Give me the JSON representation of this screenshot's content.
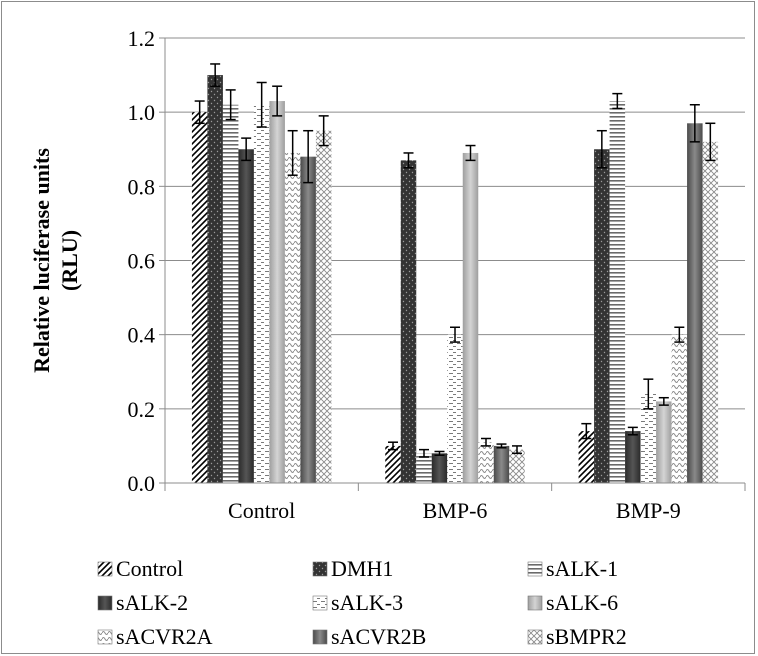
{
  "chart_data": {
    "type": "bar",
    "title": "",
    "xlabel": "",
    "ylabel_lines": [
      "Relative luciferase units",
      "(RLU)"
    ],
    "ylim": [
      0,
      1.2
    ],
    "ytick_step": 0.2,
    "ytick_labels": [
      "0.0",
      "0.2",
      "0.4",
      "0.6",
      "0.8",
      "1.0",
      "1.2"
    ],
    "grid": true,
    "legend_position": "bottom",
    "categories": [
      "Control",
      "BMP-6",
      "BMP-9"
    ],
    "series": [
      {
        "name": "Control",
        "pattern": "diag-dense",
        "values": [
          1.0,
          0.1,
          0.14
        ],
        "errors": [
          0.03,
          0.01,
          0.02
        ]
      },
      {
        "name": "DMH1",
        "pattern": "dark-dots",
        "values": [
          1.1,
          0.87,
          0.9
        ],
        "errors": [
          0.03,
          0.02,
          0.05
        ]
      },
      {
        "name": "sALK-1",
        "pattern": "horiz-lines",
        "values": [
          1.02,
          0.08,
          1.03
        ],
        "errors": [
          0.04,
          0.01,
          0.02
        ]
      },
      {
        "name": "sALK-2",
        "pattern": "dark-solid",
        "values": [
          0.9,
          0.08,
          0.14
        ],
        "errors": [
          0.03,
          0.005,
          0.01
        ]
      },
      {
        "name": "sALK-3",
        "pattern": "dashes",
        "values": [
          1.02,
          0.4,
          0.24
        ],
        "errors": [
          0.06,
          0.02,
          0.04
        ]
      },
      {
        "name": "sALK-6",
        "pattern": "light-solid",
        "values": [
          1.03,
          0.89,
          0.22
        ],
        "errors": [
          0.04,
          0.02,
          0.01
        ]
      },
      {
        "name": "sACVR2A",
        "pattern": "waves",
        "values": [
          0.89,
          0.11,
          0.4
        ],
        "errors": [
          0.06,
          0.01,
          0.02
        ]
      },
      {
        "name": "sACVR2B",
        "pattern": "mid-solid",
        "values": [
          0.88,
          0.1,
          0.97
        ],
        "errors": [
          0.07,
          0.005,
          0.05
        ]
      },
      {
        "name": "sBMPR2",
        "pattern": "checks",
        "values": [
          0.95,
          0.09,
          0.92
        ],
        "errors": [
          0.04,
          0.01,
          0.05
        ]
      }
    ]
  }
}
